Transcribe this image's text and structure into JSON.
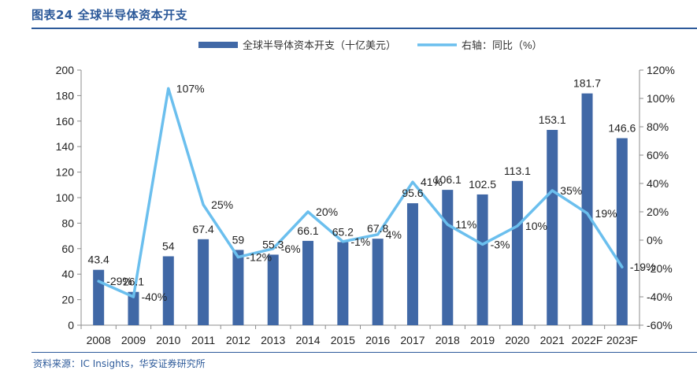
{
  "figure": {
    "title": "图表24 全球半导体资本开支",
    "source": "资料来源：IC Insights，华安证券研究所"
  },
  "chart_data": {
    "type": "bar",
    "categories": [
      "2008",
      "2009",
      "2010",
      "2011",
      "2012",
      "2013",
      "2014",
      "2015",
      "2016",
      "2017",
      "2018",
      "2019",
      "2020",
      "2021",
      "2022F",
      "2023F"
    ],
    "series": [
      {
        "name": "全球半导体资本开支（十亿美元）",
        "type": "bar",
        "axis": "left",
        "color": "#4068a6",
        "values": [
          43.4,
          26.1,
          54,
          67.4,
          59,
          55.3,
          66.1,
          65.2,
          67.8,
          95.6,
          106.1,
          102.5,
          113.1,
          153.1,
          181.7,
          146.6
        ],
        "labels": [
          "43.4",
          "26.1",
          "54",
          "67.4",
          "59",
          "55.3",
          "66.1",
          "65.2",
          "67.8",
          "95.6",
          "106.1",
          "102.5",
          "113.1",
          "153.1",
          "181.7",
          "146.6"
        ]
      },
      {
        "name": "右轴：同比（%）",
        "type": "line",
        "axis": "right",
        "color": "#6bbfee",
        "values": [
          -29,
          -40,
          107,
          25,
          -12,
          -6,
          20,
          -1,
          4,
          41,
          11,
          -3,
          10,
          35,
          19,
          -19
        ],
        "labels": [
          "-29%",
          "-40%",
          "107%",
          "25%",
          "-12%",
          "-6%",
          "20%",
          "-1%",
          "4%",
          "41%",
          "11%",
          "-3%",
          "10%",
          "35%",
          "19%",
          "-19%"
        ]
      }
    ],
    "y_left": {
      "min": 0,
      "max": 200,
      "ticks": [
        0,
        20,
        40,
        60,
        80,
        100,
        120,
        140,
        160,
        180,
        200
      ]
    },
    "y_right": {
      "min": -60,
      "max": 120,
      "ticks": [
        "-60%",
        "-40%",
        "-20%",
        "0%",
        "20%",
        "40%",
        "60%",
        "80%",
        "100%",
        "120%"
      ],
      "tick_values": [
        -60,
        -40,
        -20,
        0,
        20,
        40,
        60,
        80,
        100,
        120
      ]
    },
    "grid": false,
    "legend": "top"
  }
}
